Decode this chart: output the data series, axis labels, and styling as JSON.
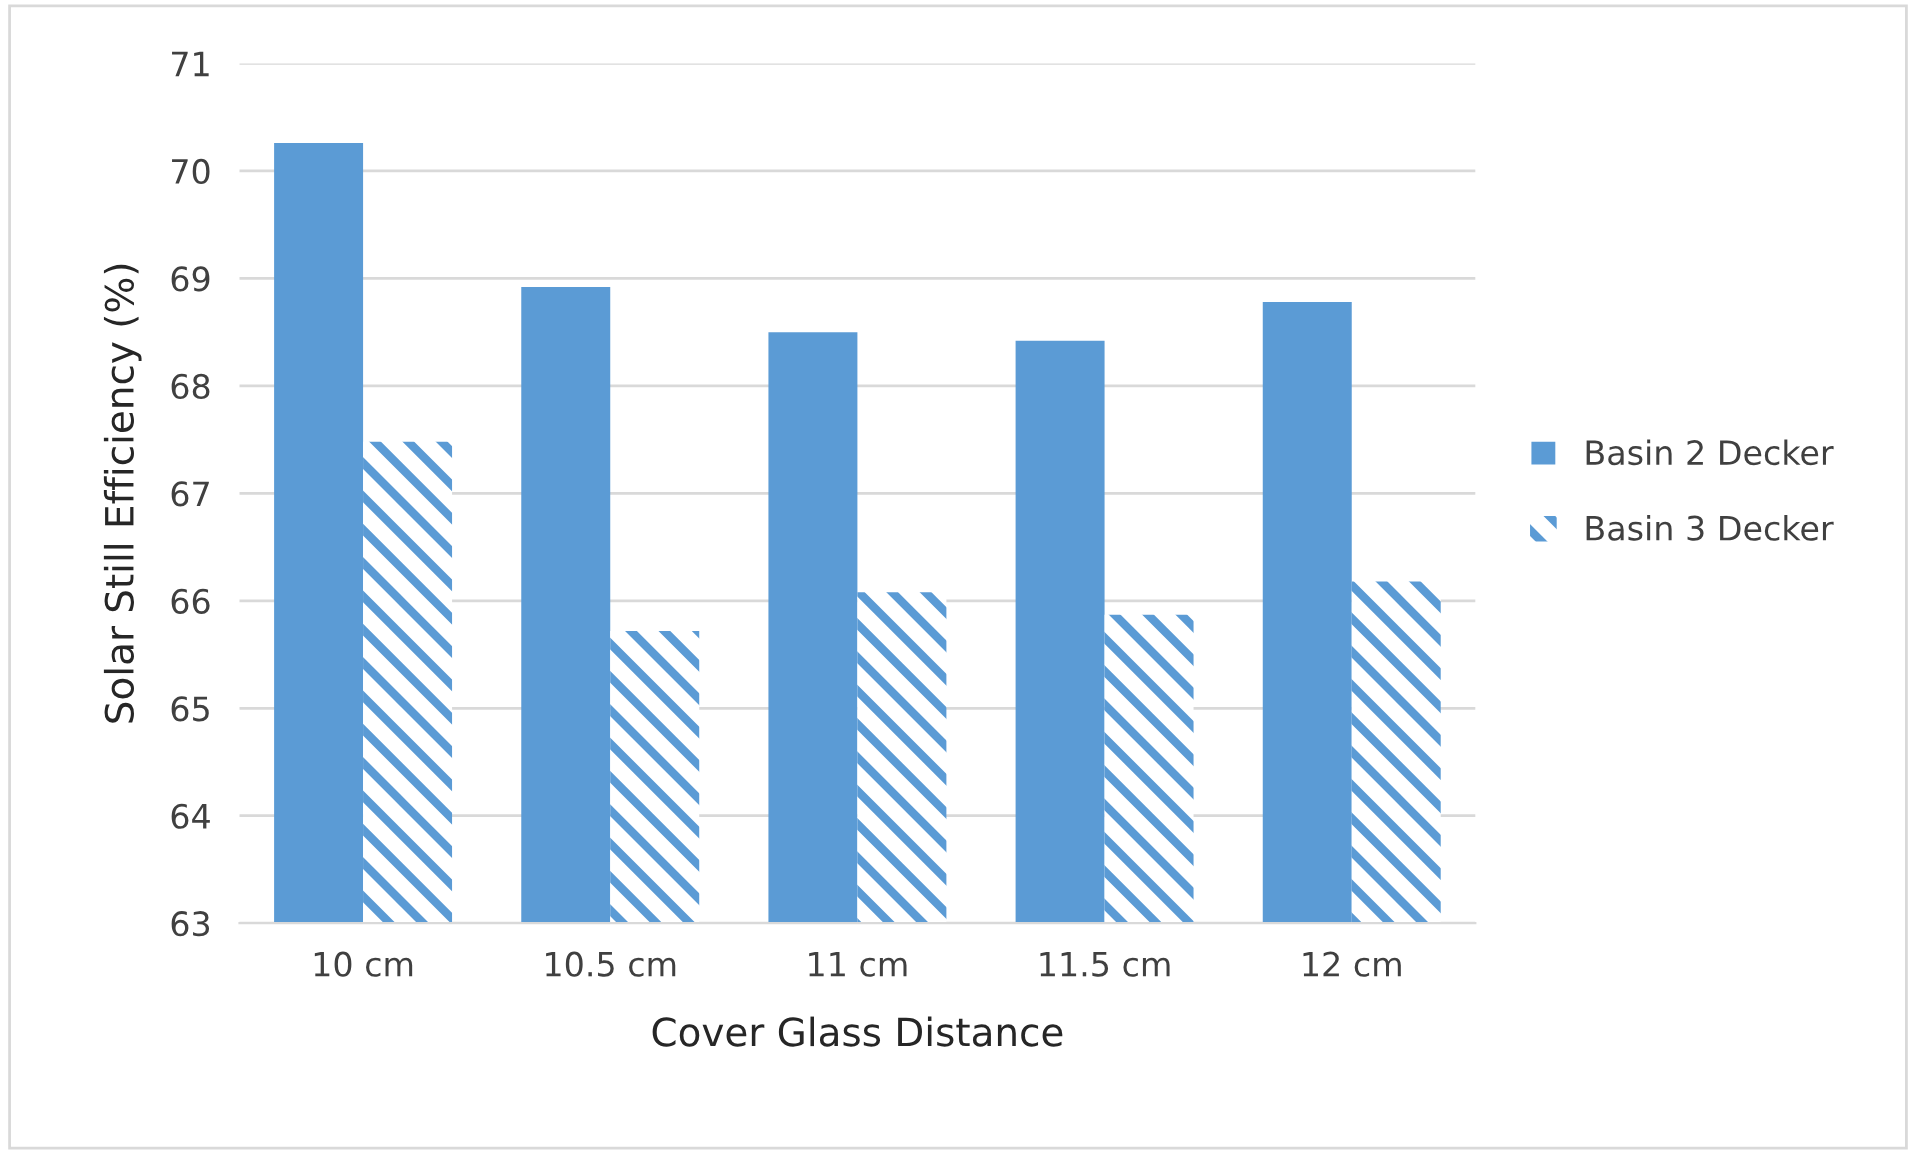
{
  "chart_data": {
    "type": "bar",
    "xlabel": "Cover Glass Distance",
    "ylabel": "Solar Still Efficiency (%)",
    "categories": [
      "10 cm",
      "10.5 cm",
      "11 cm",
      "11.5 cm",
      "12 cm"
    ],
    "series": [
      {
        "name": "Basin 2 Decker",
        "color": "#5b9bd5",
        "values": [
          70.26,
          68.92,
          68.5,
          68.42,
          68.78
        ]
      },
      {
        "name": "Basin 3 Decker",
        "color": "#5b9bd5",
        "values": [
          67.48,
          65.72,
          66.08,
          65.87,
          66.18
        ]
      }
    ],
    "ylim": [
      63,
      71
    ],
    "yticks": [
      63,
      64,
      65,
      66,
      67,
      68,
      69,
      70,
      71
    ],
    "grid": "y",
    "legend": "right"
  }
}
